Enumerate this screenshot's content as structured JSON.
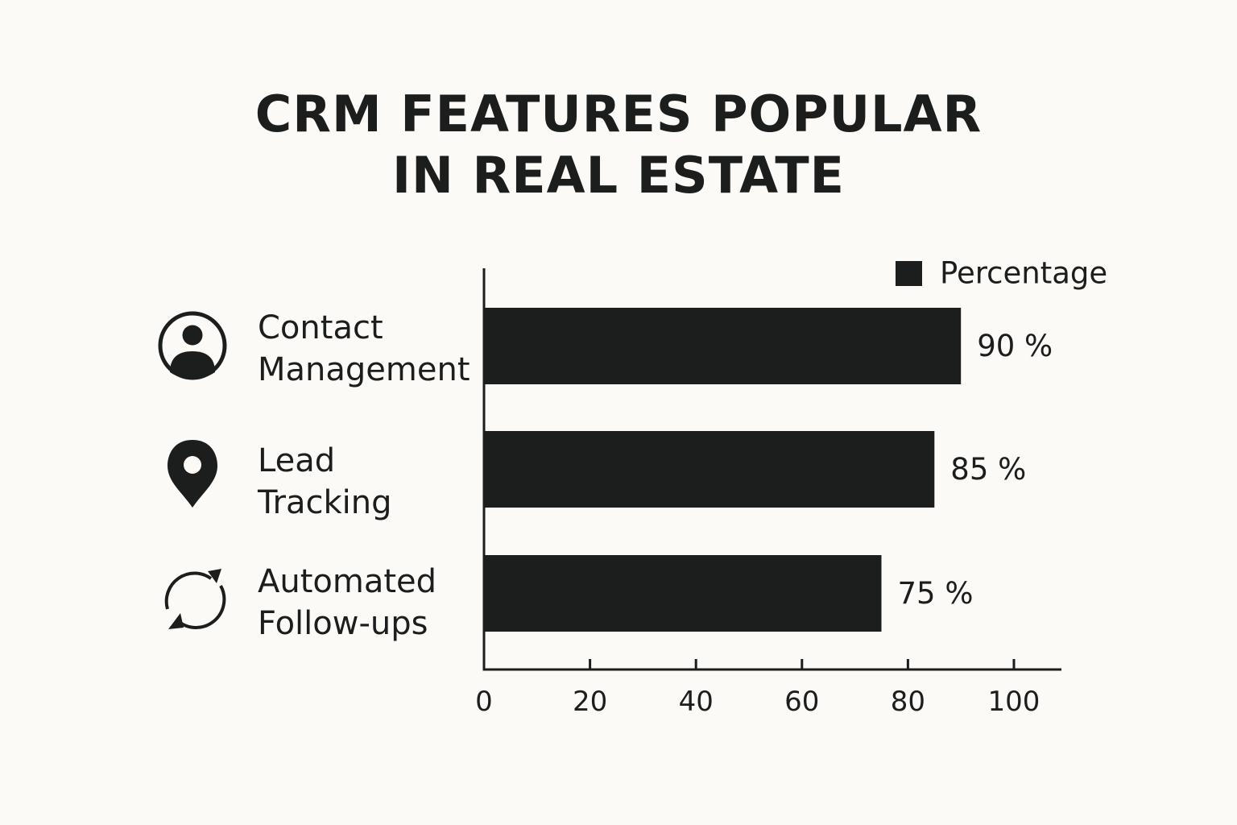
{
  "chart_data": {
    "type": "bar",
    "orientation": "horizontal",
    "title": "CRM FEATURES POPULAR IN REAL ESTATE",
    "title_lines": [
      "CRM FEATURES POPULAR",
      "IN REAL ESTATE"
    ],
    "categories": [
      {
        "lines": [
          "Contact",
          "Management"
        ],
        "icon": "contact-user-icon"
      },
      {
        "lines": [
          "Lead",
          "Tracking"
        ],
        "icon": "location-pin-icon"
      },
      {
        "lines": [
          "Automated",
          "Follow-ups"
        ],
        "icon": "refresh-cycle-icon"
      }
    ],
    "series": [
      {
        "name": "Percentage",
        "values": [
          90,
          85,
          75
        ],
        "value_labels": [
          "90 %",
          "85 %",
          "75 %"
        ]
      }
    ],
    "xlim": [
      0,
      110
    ],
    "xticks": [
      0,
      20,
      40,
      60,
      80,
      100
    ],
    "xtick_labels": [
      "0",
      "20",
      "40",
      "60",
      "80",
      "100"
    ],
    "legend": {
      "label": "Percentage",
      "placement": "top-right"
    },
    "grid": false,
    "colors": {
      "bar": "#1b1e1d",
      "text": "#1b1e1d",
      "background": "#fcfaf6"
    }
  }
}
